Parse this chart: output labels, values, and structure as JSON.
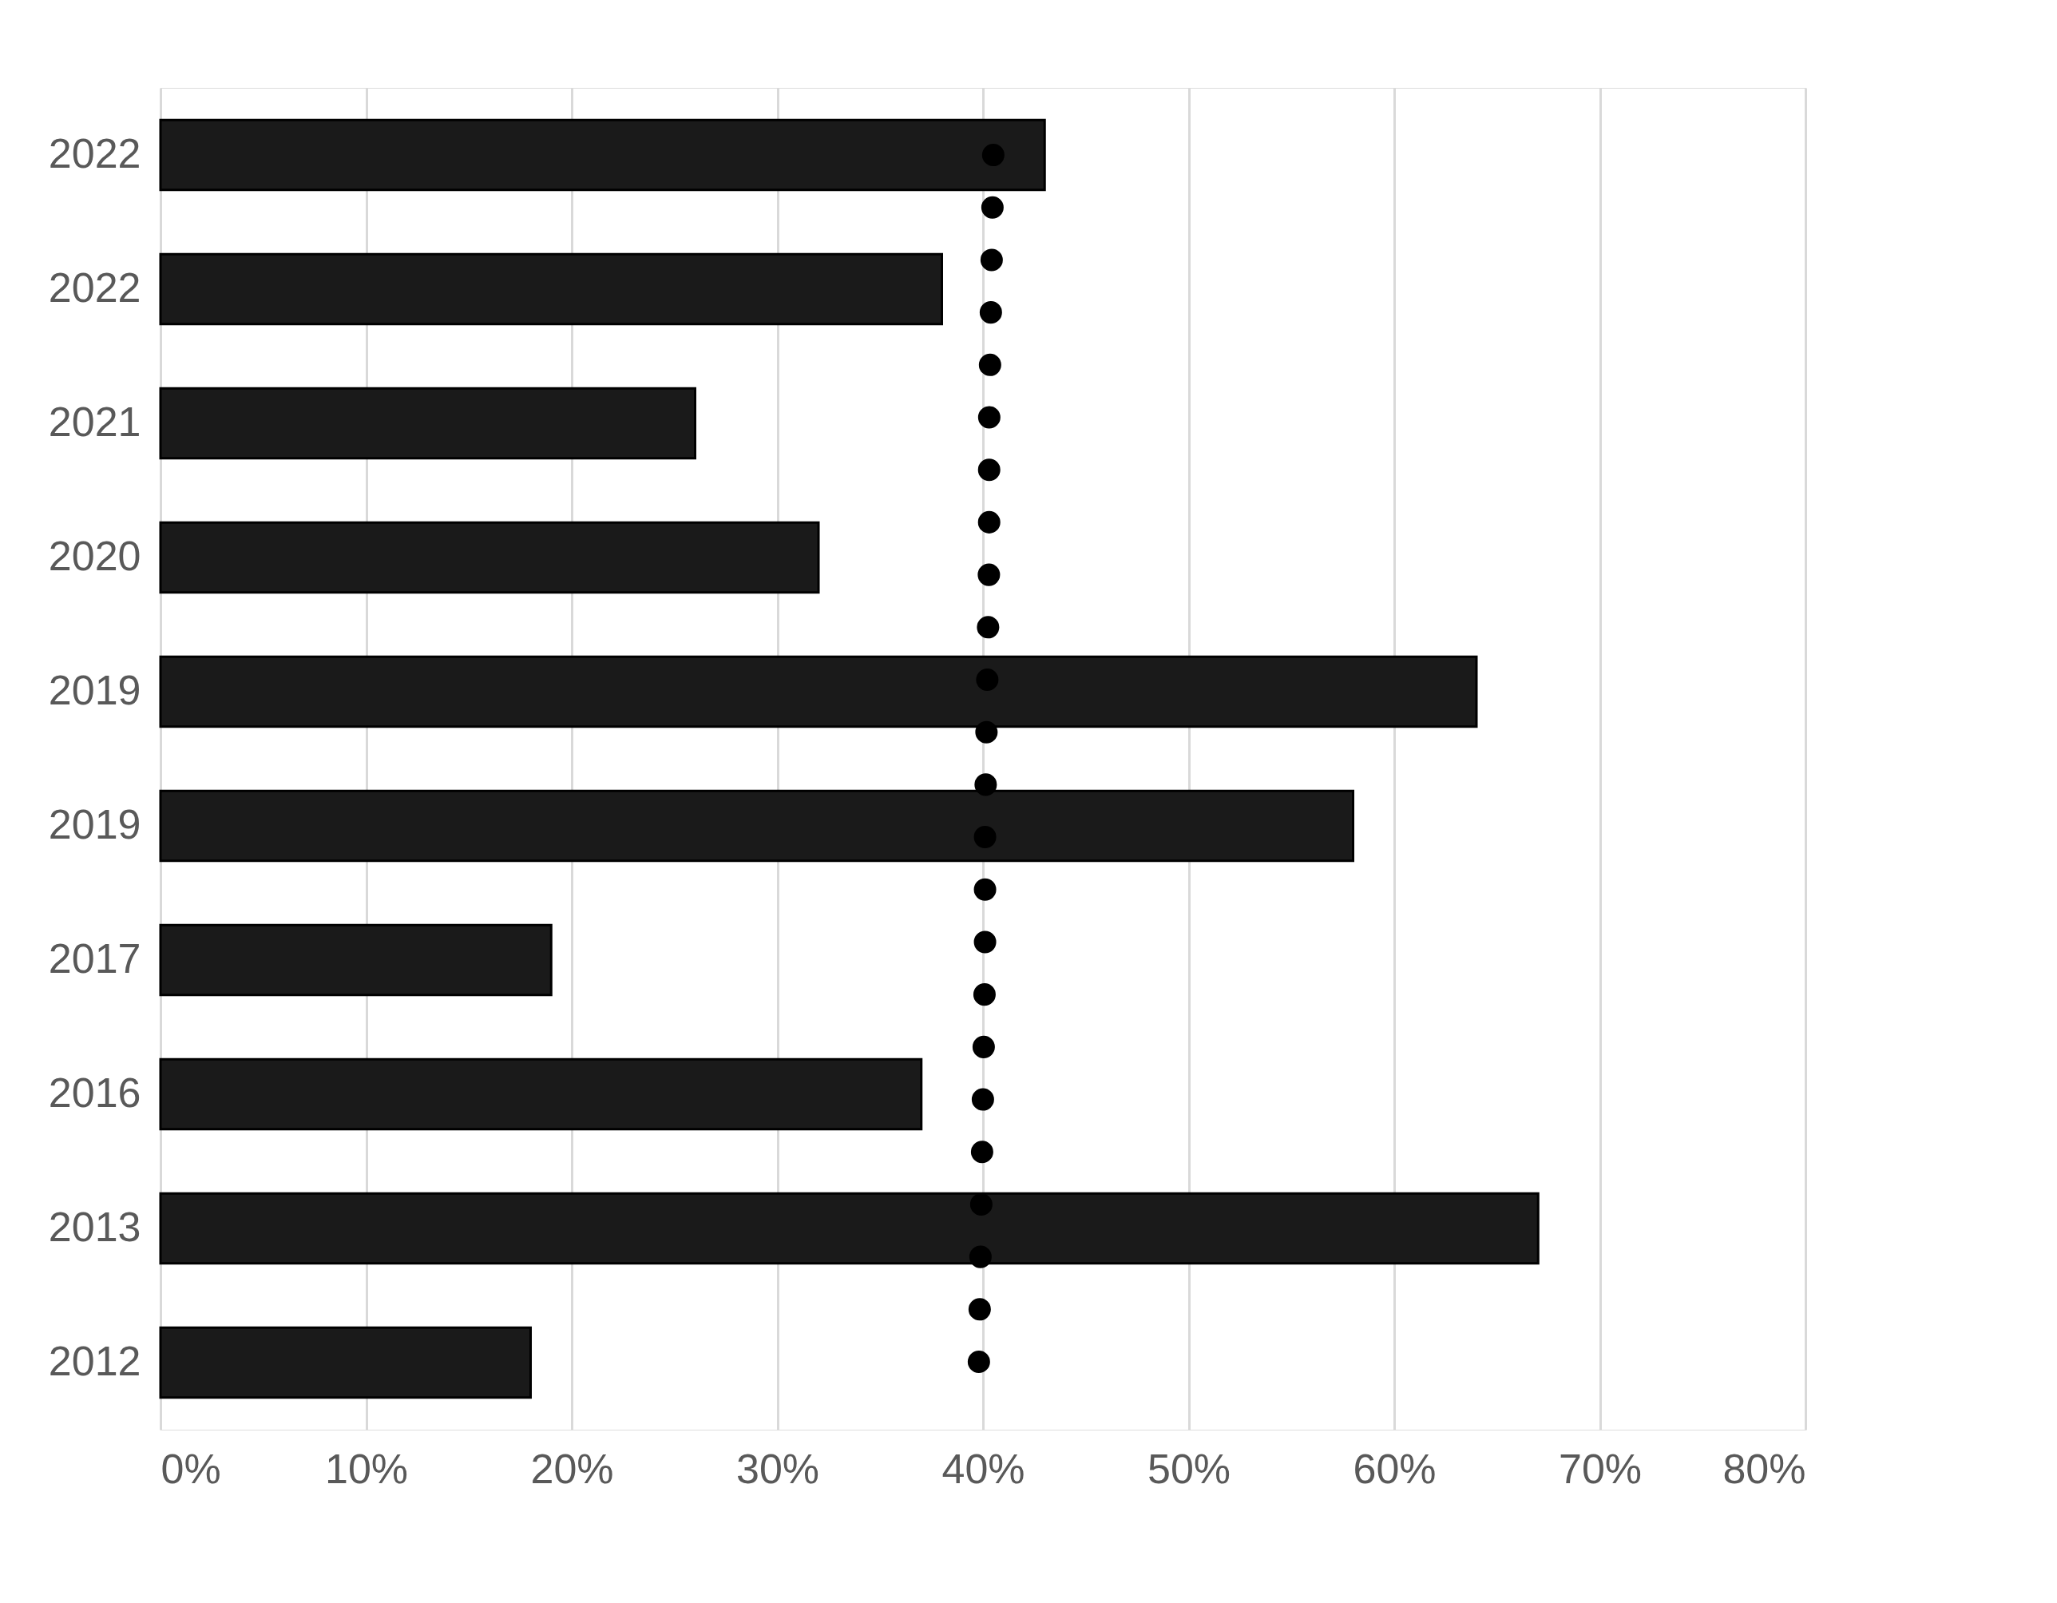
{
  "chart_data": {
    "type": "bar",
    "orientation": "horizontal",
    "categories": [
      "2022",
      "2022",
      "2021",
      "2020",
      "2019",
      "2019",
      "2017",
      "2016",
      "2013",
      "2012"
    ],
    "series": [
      {
        "color": "#1a1a1a",
        "values": [
          43,
          38,
          26,
          32,
          64,
          58,
          19,
          37,
          67,
          18
        ]
      },
      {
        "type": "line",
        "color": "#000000",
        "line_style": "dotted",
        "values": [
          40.5,
          40.4,
          40.3,
          40.3,
          40.2,
          40.1,
          40.1,
          40.0,
          39.9,
          39.8
        ]
      }
    ],
    "xlim": [
      0,
      80
    ],
    "xticks": [
      {
        "value": 0,
        "label": "0%"
      },
      {
        "value": 10,
        "label": "10%"
      },
      {
        "value": 20,
        "label": "20%"
      },
      {
        "value": 30,
        "label": "30%"
      },
      {
        "value": 40,
        "label": "40%"
      },
      {
        "value": 50,
        "label": "50%"
      },
      {
        "value": 60,
        "label": "60%"
      },
      {
        "value": 70,
        "label": "70%"
      },
      {
        "value": 80,
        "label": "80%"
      }
    ],
    "grid": "x"
  }
}
